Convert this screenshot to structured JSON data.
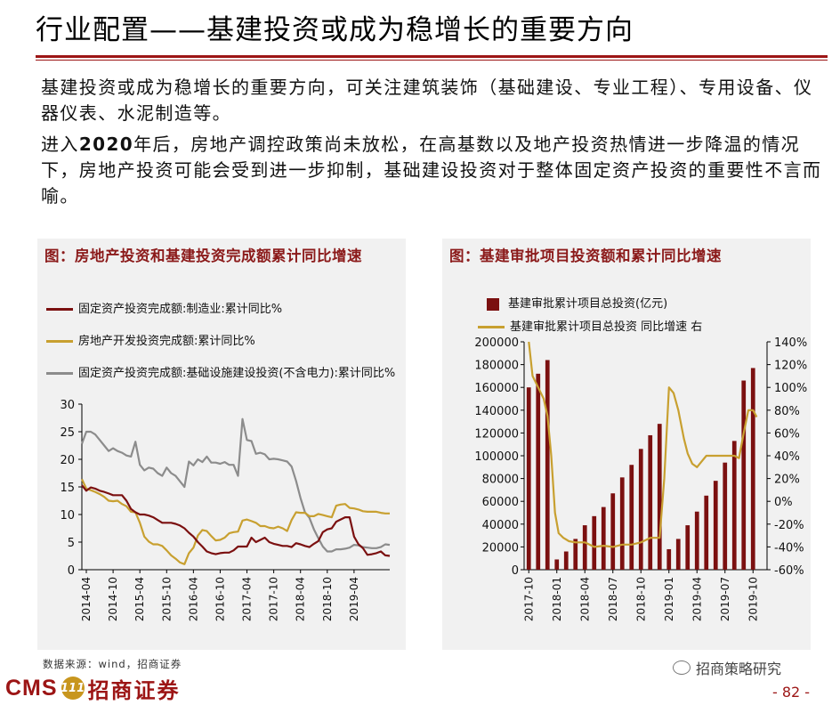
{
  "title": "行业配置——基建投资或成为稳增长的重要方向",
  "paragraphs": {
    "p1": "基建投资或成为稳增长的重要方向，可关注建筑装饰（基础建设、专业工程）、专用设备、仪器仪表、水泥制造等。",
    "p2_pre": "进入",
    "p2_year": "2020",
    "p2_post": "年后，房地产调控政策尚未放松，在高基数以及地产投资热情进一步降温的情况下，房地产投资可能会受到进一步抑制，基础建设投资对于整体固定资产投资的重要性不言而喻。"
  },
  "colors": {
    "brand_red": "#9c1515",
    "manufacturing": "#7b1010",
    "real_estate": "#c8a030",
    "infrastructure": "#8c8c8c",
    "bars": "#7b1010",
    "yoy_line": "#c8a030"
  },
  "footer": {
    "source": "数据来源：wind，招商证券",
    "logo_cms": "CMS",
    "logo_badge": "111",
    "logo_cn": "招商证券",
    "wechat": "招商策略研究",
    "page": "- 82 -"
  },
  "chart_data": [
    {
      "type": "line",
      "title": "图：房地产投资和基建投资完成额累计同比增速",
      "legend": [
        "固定资产投资完成额:制造业:累计同比%",
        "房地产开发投资完成额:累计同比%",
        "固定资产投资完成额:基础设施建设投资(不含电力):累计同比%"
      ],
      "x_ticks": [
        "2014-04",
        "2014-10",
        "2015-04",
        "2015-10",
        "2016-04",
        "2016-10",
        "2017-04",
        "2017-10",
        "2018-04",
        "2018-10",
        "2019-04"
      ],
      "ylim": [
        0,
        30
      ],
      "y_ticks": [
        0,
        5,
        10,
        15,
        20,
        25,
        30
      ],
      "x_range": [
        0,
        69
      ],
      "series": [
        {
          "name": "固定资产投资完成额:制造业:累计同比%",
          "points": [
            [
              0,
              15.3
            ],
            [
              1,
              14.3
            ],
            [
              2,
              14.9
            ],
            [
              3,
              14.7
            ],
            [
              4,
              14.3
            ],
            [
              5,
              14.1
            ],
            [
              6,
              13.8
            ],
            [
              7,
              13.5
            ],
            [
              8,
              13.5
            ],
            [
              9,
              13.5
            ],
            [
              10,
              12.5
            ],
            [
              11,
              11.0
            ],
            [
              12,
              10.4
            ],
            [
              13,
              10.0
            ],
            [
              14,
              10.0
            ],
            [
              15,
              9.8
            ],
            [
              16,
              9.5
            ],
            [
              17,
              9.0
            ],
            [
              18,
              8.5
            ],
            [
              19,
              8.5
            ],
            [
              20,
              8.5
            ],
            [
              21,
              8.3
            ],
            [
              22,
              8.0
            ],
            [
              23,
              7.5
            ],
            [
              24,
              6.7
            ],
            [
              25,
              6.0
            ],
            [
              26,
              5.0
            ],
            [
              27,
              4.2
            ],
            [
              28,
              3.3
            ],
            [
              29,
              3.0
            ],
            [
              30,
              2.8
            ],
            [
              31,
              3.0
            ],
            [
              32,
              3.1
            ],
            [
              33,
              3.1
            ],
            [
              34,
              3.5
            ],
            [
              35,
              4.2
            ],
            [
              36,
              4.2
            ],
            [
              37,
              4.2
            ],
            [
              38,
              5.8
            ],
            [
              39,
              5.0
            ],
            [
              40,
              5.4
            ],
            [
              41,
              5.8
            ],
            [
              42,
              5.0
            ],
            [
              43,
              4.7
            ],
            [
              44,
              4.5
            ],
            [
              45,
              4.3
            ],
            [
              46,
              4.3
            ],
            [
              47,
              4.1
            ],
            [
              48,
              4.8
            ],
            [
              49,
              4.6
            ],
            [
              50,
              4.3
            ],
            [
              51,
              4.1
            ],
            [
              52,
              4.7
            ],
            [
              53,
              5.2
            ],
            [
              54,
              6.8
            ],
            [
              55,
              7.3
            ],
            [
              56,
              7.5
            ],
            [
              57,
              8.7
            ],
            [
              58,
              9.1
            ],
            [
              59,
              9.5
            ],
            [
              60,
              9.5
            ],
            [
              61,
              6.0
            ],
            [
              62,
              4.6
            ],
            [
              63,
              3.9
            ],
            [
              64,
              2.7
            ],
            [
              65,
              2.8
            ],
            [
              66,
              3.0
            ],
            [
              67,
              3.3
            ],
            [
              68,
              2.6
            ],
            [
              69,
              2.5
            ]
          ]
        },
        {
          "name": "房地产开发投资完成额:累计同比%",
          "points": [
            [
              0,
              16.4
            ],
            [
              1,
              14.7
            ],
            [
              2,
              14.4
            ],
            [
              3,
              14.1
            ],
            [
              4,
              13.7
            ],
            [
              5,
              13.2
            ],
            [
              6,
              12.5
            ],
            [
              7,
              12.4
            ],
            [
              8,
              12.5
            ],
            [
              9,
              11.9
            ],
            [
              10,
              11.5
            ],
            [
              11,
              10.5
            ],
            [
              12,
              10.4
            ],
            [
              13,
              8.5
            ],
            [
              14,
              6.0
            ],
            [
              15,
              5.1
            ],
            [
              16,
              4.6
            ],
            [
              17,
              4.6
            ],
            [
              18,
              4.3
            ],
            [
              19,
              3.5
            ],
            [
              20,
              2.6
            ],
            [
              21,
              2.0
            ],
            [
              22,
              1.3
            ],
            [
              23,
              1.0
            ],
            [
              24,
              3.0
            ],
            [
              25,
              4.0
            ],
            [
              26,
              6.2
            ],
            [
              27,
              7.2
            ],
            [
              28,
              7.0
            ],
            [
              29,
              6.1
            ],
            [
              30,
              5.3
            ],
            [
              31,
              5.4
            ],
            [
              32,
              5.8
            ],
            [
              33,
              6.6
            ],
            [
              34,
              6.8
            ],
            [
              35,
              6.9
            ],
            [
              36,
              8.9
            ],
            [
              37,
              9.1
            ],
            [
              38,
              8.8
            ],
            [
              39,
              8.5
            ],
            [
              40,
              7.9
            ],
            [
              41,
              7.9
            ],
            [
              42,
              7.6
            ],
            [
              43,
              7.5
            ],
            [
              44,
              7.8
            ],
            [
              45,
              7.5
            ],
            [
              46,
              7.0
            ],
            [
              47,
              9.0
            ],
            [
              48,
              10.4
            ],
            [
              49,
              10.3
            ],
            [
              50,
              10.3
            ],
            [
              51,
              9.7
            ],
            [
              52,
              9.7
            ],
            [
              53,
              10.1
            ],
            [
              54,
              9.9
            ],
            [
              55,
              9.7
            ],
            [
              56,
              9.5
            ],
            [
              57,
              11.6
            ],
            [
              58,
              11.8
            ],
            [
              59,
              11.9
            ],
            [
              60,
              11.2
            ],
            [
              61,
              11.1
            ],
            [
              62,
              10.9
            ],
            [
              63,
              10.6
            ],
            [
              64,
              10.5
            ],
            [
              65,
              10.5
            ],
            [
              66,
              10.5
            ],
            [
              67,
              10.3
            ],
            [
              68,
              10.2
            ],
            [
              69,
              10.2
            ]
          ]
        },
        {
          "name": "固定资产投资完成额:基础设施建设投资(不含电力):累计同比%",
          "points": [
            [
              0,
              22.8
            ],
            [
              1,
              25.0
            ],
            [
              2,
              25.0
            ],
            [
              3,
              24.5
            ],
            [
              4,
              23.5
            ],
            [
              5,
              22.5
            ],
            [
              6,
              21.5
            ],
            [
              7,
              22.0
            ],
            [
              8,
              21.5
            ],
            [
              9,
              21.2
            ],
            [
              10,
              20.7
            ],
            [
              11,
              20.5
            ],
            [
              12,
              23.2
            ],
            [
              13,
              19.0
            ],
            [
              14,
              18.0
            ],
            [
              15,
              18.5
            ],
            [
              16,
              18.3
            ],
            [
              17,
              17.5
            ],
            [
              18,
              17.0
            ],
            [
              19,
              18.5
            ],
            [
              20,
              17.5
            ],
            [
              21,
              17.0
            ],
            [
              22,
              16.0
            ],
            [
              23,
              15.0
            ],
            [
              24,
              19.6
            ],
            [
              25,
              18.9
            ],
            [
              26,
              20.0
            ],
            [
              27,
              19.5
            ],
            [
              28,
              20.5
            ],
            [
              29,
              19.4
            ],
            [
              30,
              19.4
            ],
            [
              31,
              19.2
            ],
            [
              32,
              19.5
            ],
            [
              33,
              19.0
            ],
            [
              34,
              19.0
            ],
            [
              35,
              17.0
            ],
            [
              36,
              27.3
            ],
            [
              37,
              23.5
            ],
            [
              38,
              23.3
            ],
            [
              39,
              21.0
            ],
            [
              40,
              21.2
            ],
            [
              41,
              20.9
            ],
            [
              42,
              20.0
            ],
            [
              43,
              20.1
            ],
            [
              44,
              20.0
            ],
            [
              45,
              19.8
            ],
            [
              46,
              19.6
            ],
            [
              47,
              18.7
            ],
            [
              48,
              16.1
            ],
            [
              49,
              13.0
            ],
            [
              50,
              10.4
            ],
            [
              51,
              9.4
            ],
            [
              52,
              7.3
            ],
            [
              53,
              5.7
            ],
            [
              54,
              4.2
            ],
            [
              55,
              3.3
            ],
            [
              56,
              3.3
            ],
            [
              57,
              3.7
            ],
            [
              58,
              3.7
            ],
            [
              59,
              3.8
            ],
            [
              60,
              4.0
            ],
            [
              61,
              4.5
            ],
            [
              62,
              4.4
            ],
            [
              63,
              4.1
            ],
            [
              64,
              4.0
            ],
            [
              65,
              3.9
            ],
            [
              66,
              3.9
            ],
            [
              67,
              4.1
            ],
            [
              68,
              4.6
            ],
            [
              69,
              4.5
            ]
          ]
        }
      ]
    },
    {
      "type": "bar",
      "title": "图：基建审批项目投资额和累计同比增速",
      "legend": [
        "基建审批累计项目总投资(亿元)",
        "基建审批累计项目总投资 同比增速 右"
      ],
      "categories": [
        "2017-10",
        "2017-11",
        "2017-12",
        "2018-01",
        "2018-02",
        "2018-03",
        "2018-04",
        "2018-05",
        "2018-06",
        "2018-07",
        "2018-08",
        "2018-09",
        "2018-10",
        "2018-11",
        "2018-12",
        "2019-01",
        "2019-02",
        "2019-03",
        "2019-04",
        "2019-05",
        "2019-06",
        "2019-07",
        "2019-08",
        "2019-09",
        "2019-10",
        "2019-11"
      ],
      "x_ticks": [
        "2017-10",
        "2018-01",
        "2018-04",
        "2018-07",
        "2018-10",
        "2019-01",
        "2019-04",
        "2019-07",
        "2019-10"
      ],
      "values": [
        160000,
        172000,
        184000,
        9000,
        16000,
        27000,
        39000,
        47000,
        55000,
        67000,
        81000,
        92000,
        106000,
        118000,
        128000,
        18000,
        27000,
        39000,
        51000,
        65000,
        78000,
        94000,
        113000,
        166000,
        177000,
        0
      ],
      "ylim_left": [
        0,
        200000
      ],
      "y_ticks_left": [
        "0",
        "20000",
        "40000",
        "60000",
        "80000",
        "100000",
        "120000",
        "140000",
        "160000",
        "180000",
        "200000"
      ],
      "ylim_right": [
        -60,
        140
      ],
      "y_ticks_right": [
        "-60%",
        "-40%",
        "-20%",
        "0%",
        "20%",
        "40%",
        "60%",
        "80%",
        "100%",
        "120%",
        "140%"
      ],
      "yoy_series": {
        "name": "基建审批累计项目总投资 同比增速 右",
        "points": [
          [
            0,
            140
          ],
          [
            0.4,
            110
          ],
          [
            1,
            100
          ],
          [
            1.6,
            90
          ],
          [
            2,
            75
          ],
          [
            2.4,
            40
          ],
          [
            2.8,
            -10
          ],
          [
            3.2,
            -28
          ],
          [
            3.7,
            -32
          ],
          [
            4.3,
            -35
          ],
          [
            5,
            -36
          ],
          [
            6,
            -36
          ],
          [
            7,
            -40
          ],
          [
            8,
            -39
          ],
          [
            9,
            -40
          ],
          [
            10,
            -38
          ],
          [
            11,
            -38
          ],
          [
            12,
            -36
          ],
          [
            13,
            -32
          ],
          [
            14,
            -32
          ],
          [
            14.5,
            20
          ],
          [
            15,
            100
          ],
          [
            15.5,
            95
          ],
          [
            16,
            80
          ],
          [
            16.6,
            55
          ],
          [
            17,
            42
          ],
          [
            17.5,
            33
          ],
          [
            18,
            30
          ],
          [
            18.5,
            35
          ],
          [
            19,
            40
          ],
          [
            20,
            40
          ],
          [
            21,
            40
          ],
          [
            22,
            40
          ],
          [
            22.5,
            38
          ],
          [
            23,
            60
          ],
          [
            23.5,
            80
          ],
          [
            24,
            80
          ],
          [
            24.4,
            74
          ]
        ]
      }
    }
  ]
}
